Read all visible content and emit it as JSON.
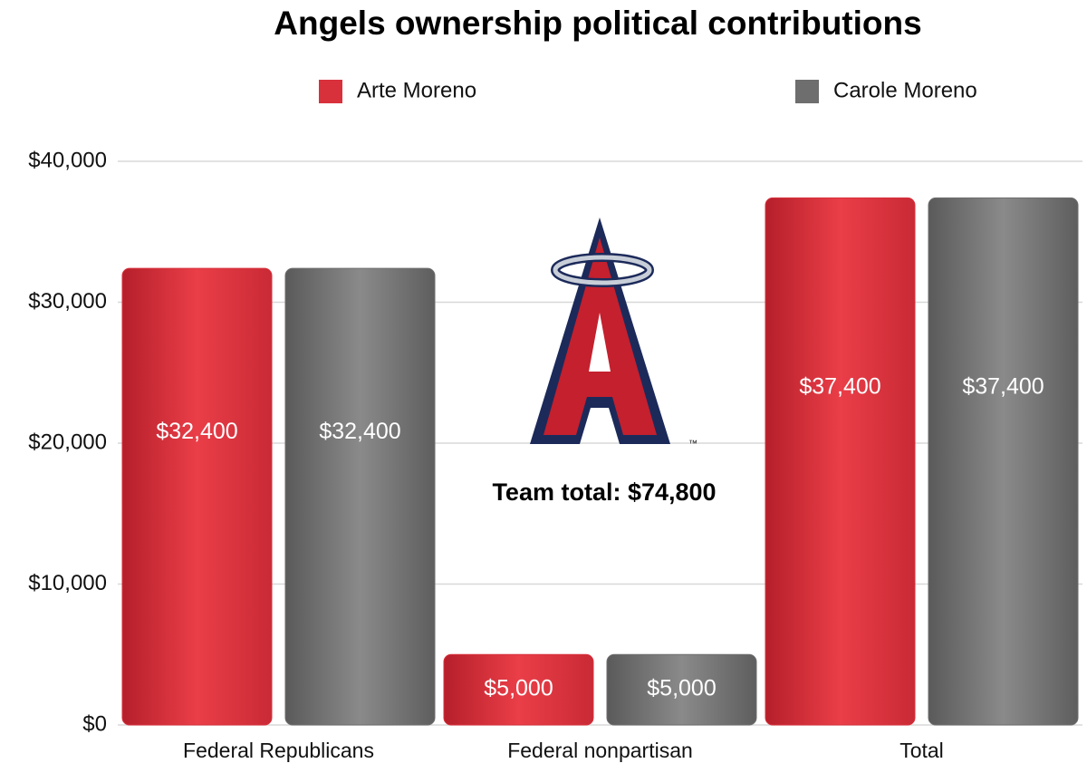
{
  "chart_data": {
    "type": "bar",
    "title": "Angels ownership political contributions",
    "annotation": "Team total: $74,800",
    "logo_trademark": "™",
    "categories": [
      "Federal Republicans",
      "Federal nonpartisan",
      "Total"
    ],
    "series": [
      {
        "name": "Arte Moreno",
        "color": "#d8313c",
        "values": [
          32400,
          5000,
          37400
        ],
        "value_labels": [
          "$32,400",
          "$5,000",
          "$37,400"
        ]
      },
      {
        "name": "Carole Moreno",
        "color": "#6e6e6e",
        "values": [
          32400,
          5000,
          37400
        ],
        "value_labels": [
          "$32,400",
          "$5,000",
          "$37,400"
        ]
      }
    ],
    "ylim": [
      0,
      40000
    ],
    "yticks": [
      {
        "value": 0,
        "label": "$0"
      },
      {
        "value": 10000,
        "label": "$10,000"
      },
      {
        "value": 20000,
        "label": "$20,000"
      },
      {
        "value": 30000,
        "label": "$30,000"
      },
      {
        "value": 40000,
        "label": "$40,000"
      }
    ],
    "grid": true
  }
}
